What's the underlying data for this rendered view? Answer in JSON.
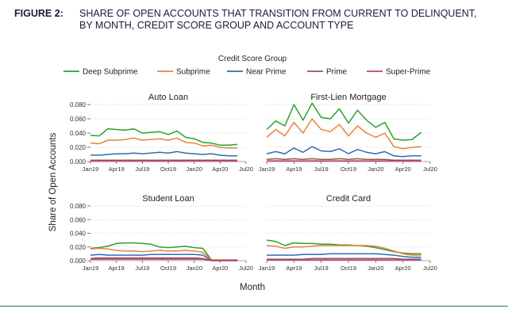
{
  "figure": {
    "label": "FIGURE 2:",
    "title": "SHARE OF OPEN ACCOUNTS THAT TRANSITION FROM CURRENT TO DELINQUENT, BY MONTH, CREDIT SCORE GROUP AND ACCOUNT TYPE"
  },
  "chart_data": {
    "type": "line",
    "legend_title": "Credit Score Group",
    "legend_placement": "top-center",
    "ylabel": "Share of Open Accounts",
    "xlabel": "Month",
    "x": [
      "2019-01",
      "2019-02",
      "2019-03",
      "2019-04",
      "2019-05",
      "2019-06",
      "2019-07",
      "2019-08",
      "2019-09",
      "2019-10",
      "2019-11",
      "2019-12",
      "2020-01",
      "2020-02",
      "2020-03",
      "2020-04",
      "2020-05",
      "2020-06"
    ],
    "x_ticks": [
      "Jan19",
      "Apr19",
      "Jul19",
      "Oct19",
      "Jan20",
      "Apr20",
      "Jul20"
    ],
    "y_ticks": [
      "0.000",
      "0.020",
      "0.040",
      "0.060",
      "0.080"
    ],
    "ylim": [
      0,
      0.08
    ],
    "grid": true,
    "series_styles": [
      {
        "name": "Deep Subprime",
        "color": "#2ca02c"
      },
      {
        "name": "Subprime",
        "color": "#e8823a"
      },
      {
        "name": "Near Prime",
        "color": "#2d6db5"
      },
      {
        "name": "Prime",
        "color": "#8c5a4a"
      },
      {
        "name": "Super-Prime",
        "color": "#c2397e"
      }
    ],
    "panels": [
      {
        "title": "Auto Loan",
        "series": [
          {
            "name": "Deep Subprime",
            "values": [
              0.037,
              0.036,
              0.046,
              0.045,
              0.044,
              0.046,
              0.04,
              0.041,
              0.042,
              0.038,
              0.043,
              0.034,
              0.032,
              0.027,
              0.026,
              0.023,
              0.023,
              0.024
            ]
          },
          {
            "name": "Subprime",
            "values": [
              0.026,
              0.025,
              0.03,
              0.03,
              0.031,
              0.033,
              0.03,
              0.031,
              0.032,
              0.03,
              0.033,
              0.027,
              0.026,
              0.022,
              0.023,
              0.02,
              0.019,
              0.019
            ]
          },
          {
            "name": "Near Prime",
            "values": [
              0.009,
              0.009,
              0.01,
              0.011,
              0.011,
              0.012,
              0.011,
              0.012,
              0.013,
              0.012,
              0.014,
              0.012,
              0.011,
              0.01,
              0.011,
              0.009,
              0.008,
              0.008
            ]
          },
          {
            "name": "Prime",
            "values": [
              0.002,
              0.002,
              0.002,
              0.002,
              0.002,
              0.002,
              0.002,
              0.002,
              0.002,
              0.002,
              0.002,
              0.002,
              0.002,
              0.002,
              0.002,
              0.002,
              0.002,
              0.002
            ]
          },
          {
            "name": "Super-Prime",
            "values": [
              0.001,
              0.001,
              0.001,
              0.001,
              0.001,
              0.001,
              0.001,
              0.001,
              0.001,
              0.001,
              0.001,
              0.001,
              0.001,
              0.001,
              0.001,
              0.001,
              0.001,
              0.001
            ]
          }
        ]
      },
      {
        "title": "First-Lien Mortgage",
        "series": [
          {
            "name": "Deep Subprime",
            "values": [
              0.045,
              0.057,
              0.05,
              0.08,
              0.058,
              0.082,
              0.062,
              0.06,
              0.074,
              0.054,
              0.072,
              0.058,
              0.048,
              0.055,
              0.032,
              0.03,
              0.031,
              0.041
            ]
          },
          {
            "name": "Subprime",
            "values": [
              0.034,
              0.045,
              0.036,
              0.055,
              0.04,
              0.06,
              0.045,
              0.042,
              0.052,
              0.036,
              0.05,
              0.04,
              0.034,
              0.04,
              0.021,
              0.018,
              0.02,
              0.021
            ]
          },
          {
            "name": "Near Prime",
            "values": [
              0.011,
              0.014,
              0.011,
              0.019,
              0.013,
              0.021,
              0.015,
              0.014,
              0.018,
              0.011,
              0.017,
              0.013,
              0.011,
              0.014,
              0.008,
              0.007,
              0.008,
              0.008
            ]
          },
          {
            "name": "Prime",
            "values": [
              0.003,
              0.004,
              0.003,
              0.004,
              0.003,
              0.004,
              0.003,
              0.003,
              0.004,
              0.003,
              0.004,
              0.003,
              0.003,
              0.003,
              0.002,
              0.002,
              0.002,
              0.002
            ]
          },
          {
            "name": "Super-Prime",
            "values": [
              0.001,
              0.001,
              0.001,
              0.001,
              0.001,
              0.001,
              0.001,
              0.001,
              0.001,
              0.001,
              0.001,
              0.001,
              0.001,
              0.001,
              0.001,
              0.001,
              0.001,
              0.001
            ]
          }
        ]
      },
      {
        "title": "Student Loan",
        "series": [
          {
            "name": "Deep Subprime",
            "values": [
              0.018,
              0.019,
              0.021,
              0.025,
              0.026,
              0.026,
              0.025,
              0.024,
              0.02,
              0.019,
              0.02,
              0.021,
              0.019,
              0.018,
              0.001,
              0.001,
              0.001,
              0.001
            ]
          },
          {
            "name": "Subprime",
            "values": [
              0.017,
              0.018,
              0.017,
              0.015,
              0.014,
              0.014,
              0.013,
              0.014,
              0.015,
              0.014,
              0.014,
              0.015,
              0.014,
              0.012,
              0.001,
              0.001,
              0.001,
              0.001
            ]
          },
          {
            "name": "Near Prime",
            "values": [
              0.008,
              0.009,
              0.008,
              0.008,
              0.008,
              0.008,
              0.008,
              0.009,
              0.009,
              0.009,
              0.009,
              0.009,
              0.009,
              0.008,
              0.0,
              0.0,
              0.0,
              0.0
            ]
          },
          {
            "name": "Prime",
            "values": [
              0.003,
              0.004,
              0.004,
              0.004,
              0.004,
              0.004,
              0.004,
              0.004,
              0.004,
              0.004,
              0.004,
              0.004,
              0.004,
              0.003,
              0.0,
              0.0,
              0.0,
              0.0
            ]
          },
          {
            "name": "Super-Prime",
            "values": [
              0.002,
              0.002,
              0.002,
              0.002,
              0.002,
              0.002,
              0.002,
              0.002,
              0.002,
              0.002,
              0.002,
              0.002,
              0.002,
              0.002,
              0.0,
              0.0,
              0.0,
              0.0
            ]
          }
        ]
      },
      {
        "title": "Credit Card",
        "series": [
          {
            "name": "Deep Subprime",
            "values": [
              0.03,
              0.028,
              0.022,
              0.026,
              0.025,
              0.025,
              0.024,
              0.024,
              0.023,
              0.023,
              0.022,
              0.021,
              0.019,
              0.016,
              0.013,
              0.011,
              0.01,
              0.01
            ]
          },
          {
            "name": "Subprime",
            "values": [
              0.022,
              0.021,
              0.018,
              0.02,
              0.02,
              0.021,
              0.022,
              0.022,
              0.022,
              0.022,
              0.022,
              0.022,
              0.021,
              0.018,
              0.014,
              0.01,
              0.008,
              0.008
            ]
          },
          {
            "name": "Near Prime",
            "values": [
              0.008,
              0.008,
              0.008,
              0.008,
              0.009,
              0.009,
              0.009,
              0.01,
              0.01,
              0.01,
              0.01,
              0.01,
              0.01,
              0.009,
              0.008,
              0.006,
              0.005,
              0.005
            ]
          },
          {
            "name": "Prime",
            "values": [
              0.002,
              0.002,
              0.002,
              0.002,
              0.002,
              0.003,
              0.003,
              0.003,
              0.003,
              0.003,
              0.003,
              0.003,
              0.003,
              0.003,
              0.003,
              0.002,
              0.002,
              0.002
            ]
          },
          {
            "name": "Super-Prime",
            "values": [
              0.001,
              0.001,
              0.001,
              0.001,
              0.001,
              0.001,
              0.001,
              0.001,
              0.001,
              0.001,
              0.001,
              0.001,
              0.001,
              0.001,
              0.001,
              0.001,
              0.001,
              0.001
            ]
          }
        ]
      }
    ]
  }
}
